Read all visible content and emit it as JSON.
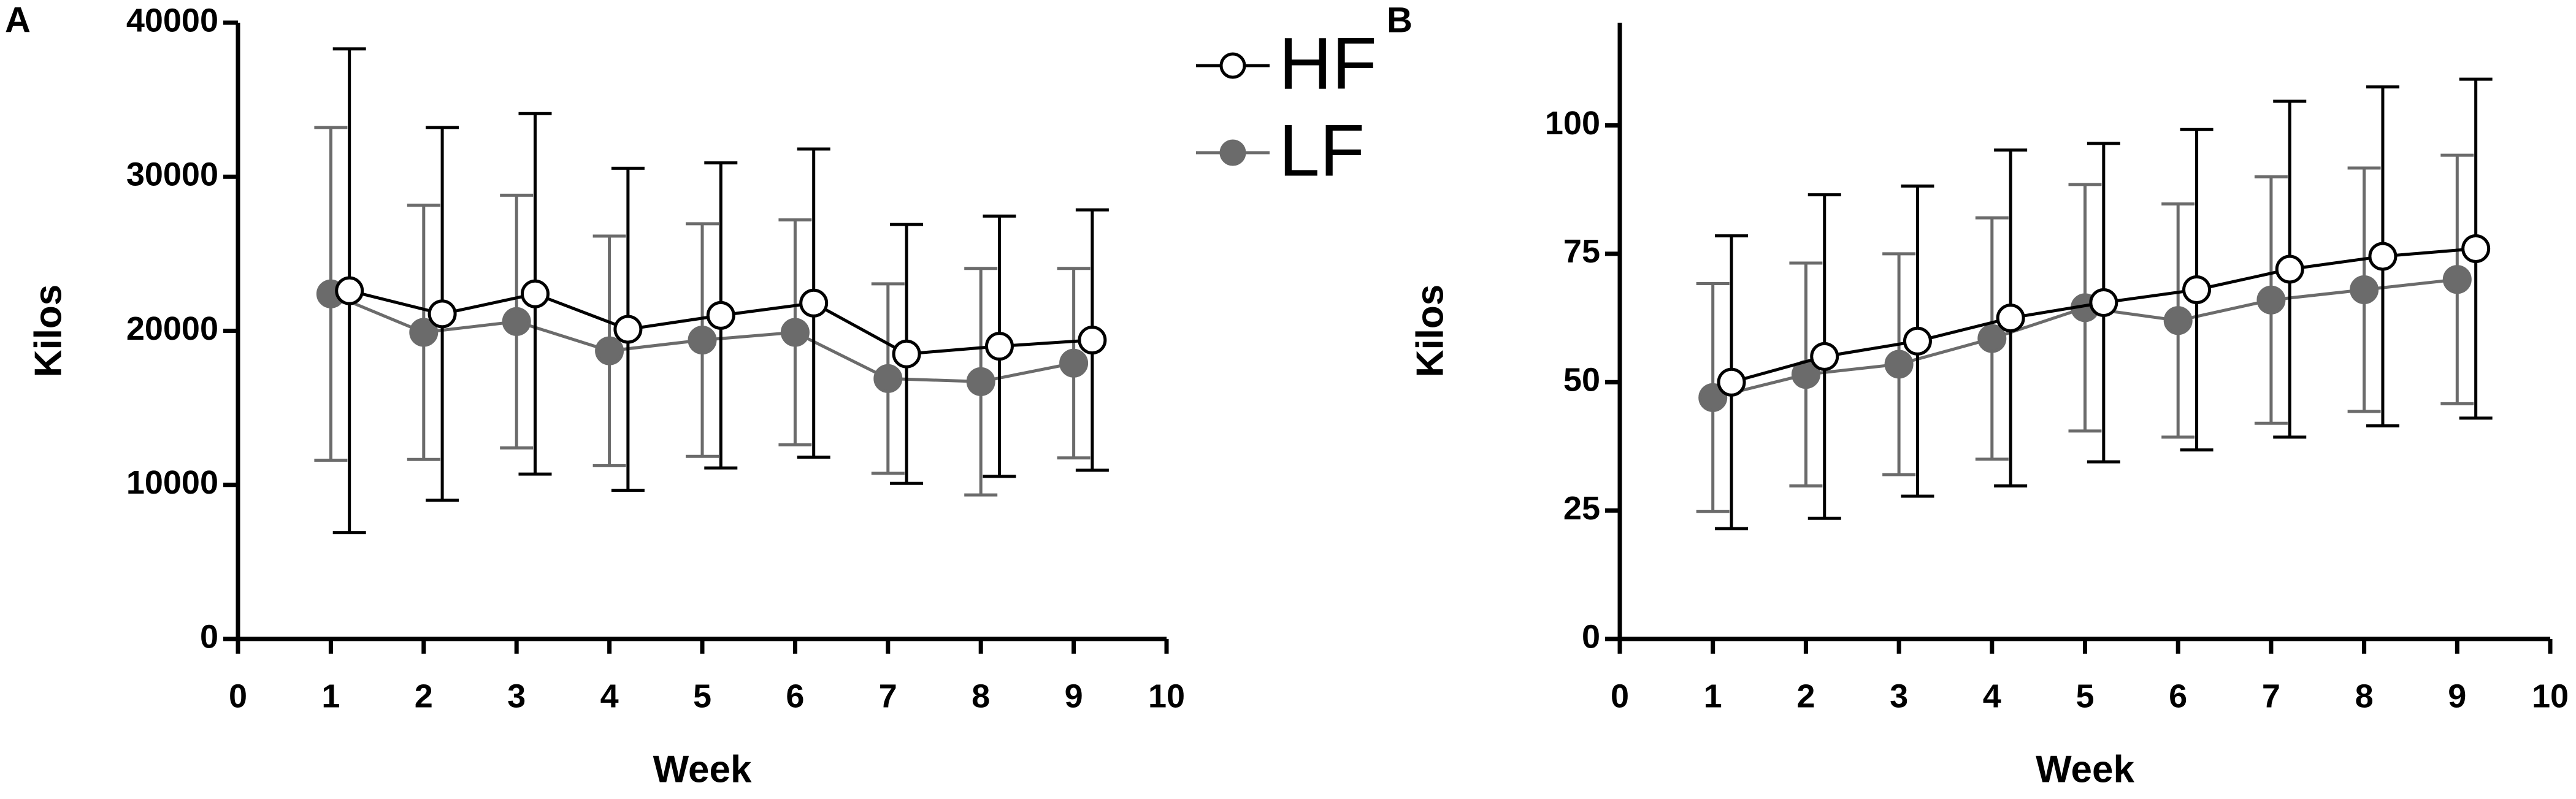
{
  "chart_data": [
    {
      "type": "line",
      "panel": "A",
      "xlabel": "Week",
      "ylabel": "Kilos",
      "legend": true,
      "xlim": [
        0,
        10
      ],
      "xticks": [
        0,
        1,
        2,
        3,
        4,
        5,
        6,
        7,
        8,
        9,
        10
      ],
      "ylim": [
        0,
        40000
      ],
      "yticks": [
        0,
        10000,
        20000,
        30000,
        40000
      ],
      "series": [
        {
          "name": "HF",
          "color": "#000000",
          "marker": "open",
          "x": [
            1.2,
            2.2,
            3.2,
            4.2,
            5.2,
            6.2,
            7.2,
            8.2,
            9.2
          ],
          "values": [
            22600,
            21100,
            22400,
            20100,
            21000,
            21800,
            18500,
            19000,
            19400
          ],
          "errors": [
            15700,
            12100,
            11700,
            10450,
            9900,
            10000,
            8400,
            8450,
            8450
          ]
        },
        {
          "name": "LF",
          "color": "#6b6b6b",
          "marker": "filled",
          "x": [
            1,
            2,
            3,
            4,
            5,
            6,
            7,
            8,
            9
          ],
          "values": [
            22400,
            19900,
            20600,
            18700,
            19400,
            19900,
            16900,
            16700,
            17900
          ],
          "errors": [
            10800,
            8250,
            8200,
            7450,
            7550,
            7300,
            6150,
            7350,
            6150
          ]
        }
      ]
    },
    {
      "type": "line",
      "panel": "B",
      "xlabel": "Week",
      "ylabel": "Kilos",
      "legend": false,
      "xlim": [
        0,
        10
      ],
      "xticks": [
        0,
        1,
        2,
        3,
        4,
        5,
        6,
        7,
        8,
        9,
        10
      ],
      "ylim": [
        0,
        120
      ],
      "yticks": [
        0,
        25,
        50,
        75,
        100
      ],
      "series": [
        {
          "name": "HF",
          "color": "#000000",
          "marker": "open",
          "x": [
            1.2,
            2.2,
            3.2,
            4.2,
            5.2,
            6.2,
            7.2,
            8.2,
            9.2
          ],
          "values": [
            50,
            55,
            58,
            62.5,
            65.5,
            68,
            72,
            74.5,
            76
          ],
          "errors": [
            28.5,
            31.5,
            30.2,
            32.7,
            31,
            31.2,
            32.7,
            33,
            33
          ]
        },
        {
          "name": "LF",
          "color": "#6b6b6b",
          "marker": "filled",
          "x": [
            1,
            2,
            3,
            4,
            5,
            6,
            7,
            8,
            9
          ],
          "values": [
            47,
            51.5,
            53.5,
            58.5,
            64.5,
            62,
            66,
            68,
            70
          ],
          "errors": [
            22.2,
            21.7,
            21.5,
            23.5,
            24,
            22.7,
            24,
            23.7,
            24.2
          ]
        }
      ]
    }
  ]
}
